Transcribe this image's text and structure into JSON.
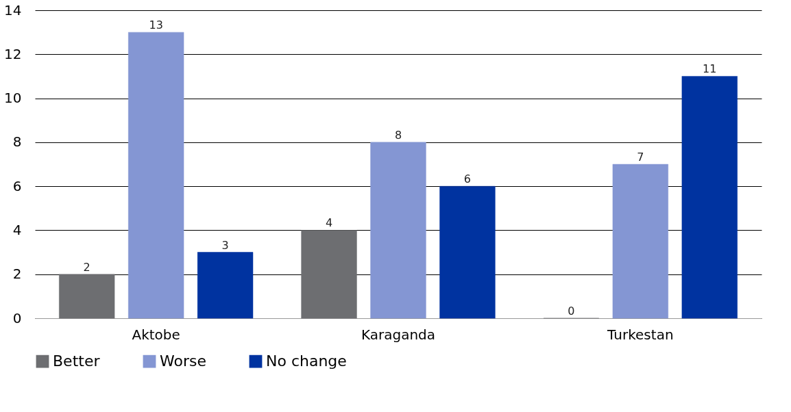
{
  "chart_data": {
    "type": "bar",
    "categories": [
      "Aktobe",
      "Karaganda",
      "Turkestan"
    ],
    "series": [
      {
        "name": "Better",
        "color": "#6d6e71",
        "values": [
          2,
          4,
          0
        ]
      },
      {
        "name": "Worse",
        "color": "#8496d3",
        "values": [
          13,
          8,
          7
        ]
      },
      {
        "name": "No change",
        "color": "#0033a0",
        "values": [
          3,
          6,
          11
        ]
      }
    ],
    "ylim": [
      0,
      14
    ],
    "yticks": [
      0,
      2,
      4,
      6,
      8,
      10,
      12,
      14
    ],
    "grid": "y",
    "legend": "bottom",
    "data_labels": true
  }
}
